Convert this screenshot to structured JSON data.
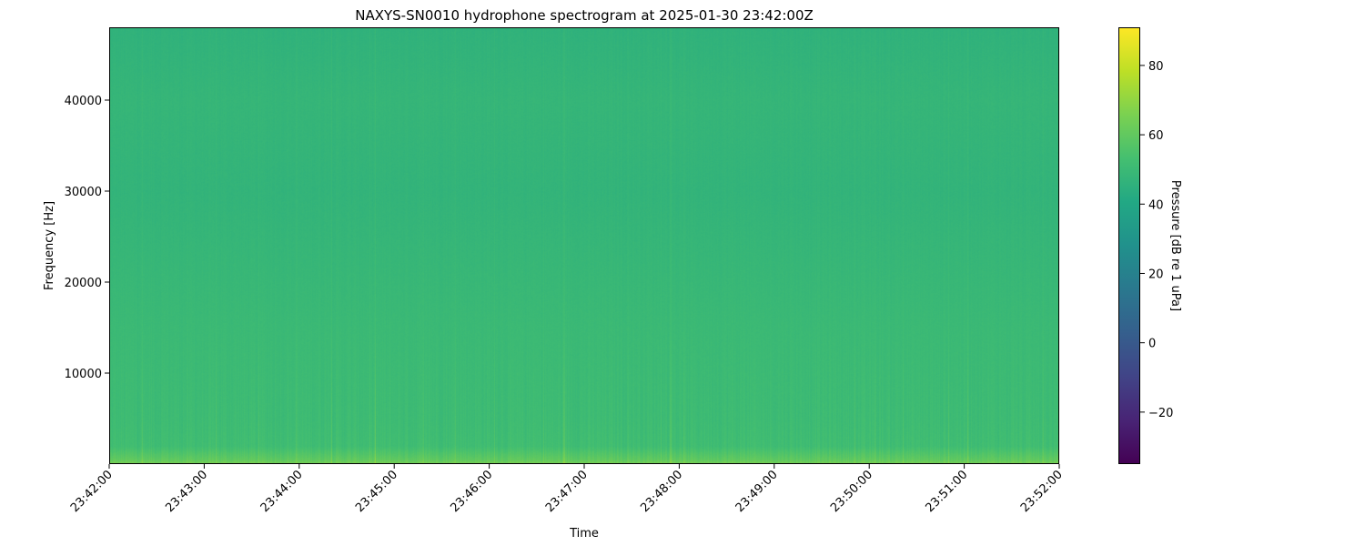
{
  "chart_data": {
    "type": "heatmap",
    "title": "NAXYS-SN0010 hydrophone spectrogram at 2025-01-30 23:42:00Z",
    "xlabel": "Time",
    "ylabel": "Frequency [Hz]",
    "x_ticks": [
      "23:42:00",
      "23:43:00",
      "23:44:00",
      "23:45:00",
      "23:46:00",
      "23:47:00",
      "23:48:00",
      "23:49:00",
      "23:50:00",
      "23:51:00",
      "23:52:00"
    ],
    "xlim": [
      "23:42:00",
      "23:52:00"
    ],
    "y_ticks": [
      10000,
      20000,
      30000,
      40000
    ],
    "ylim": [
      0,
      48000
    ],
    "colormap": "viridis",
    "colorbar": {
      "label": "Pressure [dB re 1 uPa]",
      "ticks": [
        -20,
        0,
        20,
        40,
        60,
        80
      ],
      "tick_labels": [
        "−20",
        "0",
        "20",
        "40",
        "60",
        "80"
      ],
      "range": [
        -35,
        91
      ]
    },
    "level_profile_hz_db": [
      {
        "freq": 0,
        "db": 66
      },
      {
        "freq": 500,
        "db": 60
      },
      {
        "freq": 2000,
        "db": 52
      },
      {
        "freq": 5000,
        "db": 51
      },
      {
        "freq": 15000,
        "db": 50
      },
      {
        "freq": 30000,
        "db": 47
      },
      {
        "freq": 40000,
        "db": 48
      },
      {
        "freq": 48000,
        "db": 46
      }
    ],
    "grid": false
  }
}
